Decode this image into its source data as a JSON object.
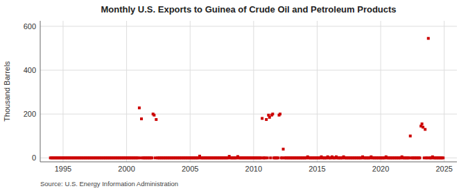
{
  "chart_data": {
    "type": "scatter",
    "title": "Monthly U.S. Exports to Guinea of Crude Oil and Petroleum Products",
    "ylabel": "Thousand Barrels",
    "source": "Source: U.S. Energy Information Administration",
    "color": "#cc0000",
    "marker": "square",
    "grid": true,
    "xlim": [
      1993.2,
      2026.0
    ],
    "ylim": [
      -18,
      625
    ],
    "xticks": [
      1995,
      2000,
      2005,
      2010,
      2015,
      2020,
      2025
    ],
    "yticks": [
      0,
      200,
      400,
      600
    ],
    "x": [
      1994.0,
      1994.08,
      1994.17,
      1994.25,
      1994.33,
      1994.42,
      1994.5,
      1994.58,
      1994.67,
      1994.75,
      1994.83,
      1994.92,
      1995.0,
      1995.08,
      1995.17,
      1995.25,
      1995.33,
      1995.42,
      1995.5,
      1995.58,
      1995.67,
      1995.75,
      1995.83,
      1995.92,
      1996.0,
      1996.08,
      1996.17,
      1996.25,
      1996.33,
      1996.42,
      1996.5,
      1996.58,
      1996.67,
      1996.75,
      1996.83,
      1996.92,
      1997.0,
      1997.08,
      1997.17,
      1997.25,
      1997.33,
      1997.42,
      1997.5,
      1997.58,
      1997.67,
      1997.75,
      1997.83,
      1997.92,
      1998.0,
      1998.08,
      1998.17,
      1998.25,
      1998.33,
      1998.42,
      1998.5,
      1998.58,
      1998.67,
      1998.75,
      1998.83,
      1998.92,
      1999.0,
      1999.08,
      1999.17,
      1999.25,
      1999.33,
      1999.42,
      1999.5,
      1999.58,
      1999.67,
      1999.75,
      1999.83,
      1999.92,
      2000.0,
      2000.08,
      2000.17,
      2000.25,
      2000.33,
      2000.42,
      2000.5,
      2000.58,
      2000.67,
      2000.75,
      2000.83,
      2000.92,
      2001.0,
      2001.08,
      2001.17,
      2001.25,
      2001.33,
      2001.42,
      2001.5,
      2001.58,
      2001.67,
      2001.75,
      2001.83,
      2001.92,
      2002.0,
      2002.08,
      2002.17,
      2002.25,
      2002.33,
      2002.42,
      2002.5,
      2002.58,
      2002.67,
      2002.75,
      2002.83,
      2002.92,
      2003.0,
      2003.08,
      2003.17,
      2003.25,
      2003.33,
      2003.42,
      2003.5,
      2003.58,
      2003.67,
      2003.75,
      2003.83,
      2003.92,
      2004.0,
      2004.08,
      2004.17,
      2004.25,
      2004.33,
      2004.42,
      2004.5,
      2004.58,
      2004.67,
      2004.75,
      2004.83,
      2004.92,
      2005.0,
      2005.08,
      2005.17,
      2005.25,
      2005.33,
      2005.42,
      2005.5,
      2005.58,
      2005.67,
      2005.75,
      2005.83,
      2005.92,
      2006.0,
      2006.08,
      2006.17,
      2006.25,
      2006.33,
      2006.42,
      2006.5,
      2006.58,
      2006.67,
      2006.75,
      2006.83,
      2006.92,
      2007.0,
      2007.08,
      2007.17,
      2007.25,
      2007.33,
      2007.42,
      2007.5,
      2007.58,
      2007.67,
      2007.75,
      2007.83,
      2007.92,
      2008.0,
      2008.08,
      2008.17,
      2008.25,
      2008.33,
      2008.42,
      2008.5,
      2008.58,
      2008.67,
      2008.75,
      2008.83,
      2008.92,
      2009.0,
      2009.08,
      2009.17,
      2009.25,
      2009.33,
      2009.42,
      2009.5,
      2009.58,
      2009.67,
      2009.75,
      2009.83,
      2009.92,
      2010.0,
      2010.08,
      2010.17,
      2010.25,
      2010.33,
      2010.42,
      2010.5,
      2010.58,
      2010.67,
      2010.75,
      2010.83,
      2010.92,
      2011.0,
      2011.08,
      2011.17,
      2011.25,
      2011.33,
      2011.42,
      2011.5,
      2011.58,
      2011.67,
      2011.75,
      2011.83,
      2011.92,
      2012.0,
      2012.08,
      2012.17,
      2012.25,
      2012.33,
      2012.42,
      2012.5,
      2012.58,
      2012.67,
      2012.75,
      2012.83,
      2012.92,
      2013.0,
      2013.08,
      2013.17,
      2013.25,
      2013.33,
      2013.42,
      2013.5,
      2013.58,
      2013.67,
      2013.75,
      2013.83,
      2013.92,
      2014.0,
      2014.08,
      2014.17,
      2014.25,
      2014.33,
      2014.42,
      2014.5,
      2014.58,
      2014.67,
      2014.75,
      2014.83,
      2014.92,
      2015.0,
      2015.08,
      2015.17,
      2015.25,
      2015.33,
      2015.42,
      2015.5,
      2015.58,
      2015.67,
      2015.75,
      2015.83,
      2015.92,
      2016.0,
      2016.08,
      2016.17,
      2016.25,
      2016.33,
      2016.42,
      2016.5,
      2016.58,
      2016.67,
      2016.75,
      2016.83,
      2016.92,
      2017.0,
      2017.08,
      2017.17,
      2017.25,
      2017.33,
      2017.42,
      2017.5,
      2017.58,
      2017.67,
      2017.75,
      2017.83,
      2017.92,
      2018.0,
      2018.08,
      2018.17,
      2018.25,
      2018.33,
      2018.42,
      2018.5,
      2018.58,
      2018.67,
      2018.75,
      2018.83,
      2018.92,
      2019.0,
      2019.08,
      2019.17,
      2019.25,
      2019.33,
      2019.42,
      2019.5,
      2019.58,
      2019.67,
      2019.75,
      2019.83,
      2019.92,
      2020.0,
      2020.08,
      2020.17,
      2020.25,
      2020.33,
      2020.42,
      2020.5,
      2020.58,
      2020.67,
      2020.75,
      2020.83,
      2020.92,
      2021.0,
      2021.08,
      2021.17,
      2021.25,
      2021.33,
      2021.42,
      2021.5,
      2021.58,
      2021.67,
      2021.75,
      2021.83,
      2021.92,
      2022.0,
      2022.08,
      2022.17,
      2022.25,
      2022.33,
      2022.42,
      2022.5,
      2022.58,
      2022.67,
      2022.75,
      2022.83,
      2022.92,
      2023.0,
      2023.08,
      2023.17,
      2023.25,
      2023.33,
      2023.42,
      2023.5,
      2023.58,
      2023.67,
      2023.75,
      2023.83,
      2023.92,
      2024.0,
      2024.08,
      2024.17,
      2024.25,
      2024.33,
      2024.42,
      2024.5,
      2024.58,
      2024.67,
      2024.75,
      2024.83,
      2024.92
    ],
    "values": [
      0,
      0,
      0,
      0,
      0,
      0,
      0,
      0,
      0,
      0,
      0,
      0,
      0,
      0,
      0,
      0,
      0,
      0,
      0,
      0,
      0,
      0,
      0,
      0,
      0,
      0,
      0,
      0,
      0,
      0,
      0,
      0,
      0,
      0,
      0,
      0,
      0,
      0,
      0,
      0,
      0,
      0,
      0,
      0,
      0,
      0,
      0,
      0,
      0,
      0,
      0,
      0,
      0,
      0,
      0,
      0,
      0,
      0,
      0,
      0,
      0,
      0,
      0,
      0,
      0,
      0,
      0,
      0,
      0,
      0,
      0,
      0,
      0,
      0,
      0,
      0,
      0,
      0,
      0,
      0,
      0,
      0,
      0,
      0,
      228,
      0,
      178,
      0,
      0,
      0,
      0,
      0,
      0,
      0,
      0,
      0,
      0,
      200,
      195,
      0,
      175,
      0,
      0,
      0,
      0,
      0,
      0,
      0,
      0,
      0,
      0,
      0,
      0,
      0,
      0,
      0,
      0,
      0,
      0,
      0,
      0,
      0,
      0,
      0,
      0,
      0,
      0,
      0,
      0,
      0,
      0,
      0,
      0,
      0,
      0,
      0,
      0,
      0,
      0,
      0,
      0,
      8,
      0,
      0,
      0,
      0,
      0,
      0,
      0,
      0,
      0,
      0,
      0,
      0,
      0,
      0,
      0,
      0,
      0,
      0,
      0,
      0,
      0,
      0,
      0,
      0,
      0,
      0,
      0,
      7,
      0,
      0,
      0,
      0,
      0,
      0,
      0,
      6,
      0,
      0,
      0,
      0,
      0,
      0,
      0,
      0,
      0,
      0,
      0,
      0,
      0,
      0,
      0,
      0,
      0,
      0,
      0,
      0,
      0,
      0,
      180,
      0,
      0,
      0,
      175,
      0,
      195,
      185,
      0,
      195,
      200,
      0,
      0,
      0,
      0,
      0,
      195,
      200,
      0,
      0,
      40,
      0,
      0,
      0,
      0,
      0,
      0,
      0,
      0,
      0,
      0,
      0,
      0,
      0,
      0,
      0,
      0,
      0,
      0,
      0,
      0,
      0,
      0,
      5,
      0,
      0,
      0,
      0,
      0,
      0,
      0,
      0,
      0,
      0,
      0,
      0,
      5,
      0,
      0,
      0,
      0,
      0,
      5,
      0,
      0,
      0,
      5,
      0,
      0,
      0,
      5,
      0,
      0,
      0,
      0,
      0,
      0,
      5,
      0,
      0,
      0,
      0,
      0,
      0,
      0,
      0,
      0,
      0,
      0,
      0,
      0,
      0,
      0,
      0,
      0,
      5,
      0,
      0,
      0,
      0,
      0,
      0,
      0,
      5,
      0,
      0,
      0,
      0,
      0,
      0,
      0,
      0,
      0,
      0,
      0,
      0,
      0,
      5,
      0,
      0,
      0,
      0,
      0,
      0,
      0,
      0,
      0,
      0,
      0,
      0,
      0,
      0,
      5,
      0,
      0,
      0,
      0,
      0,
      0,
      0,
      100,
      0,
      0,
      0,
      0,
      0,
      0,
      0,
      0,
      0,
      145,
      155,
      140,
      0,
      130,
      0,
      0,
      545,
      0,
      0,
      0,
      5,
      0,
      0,
      0,
      0,
      0,
      0,
      0,
      0,
      0,
      0
    ]
  }
}
